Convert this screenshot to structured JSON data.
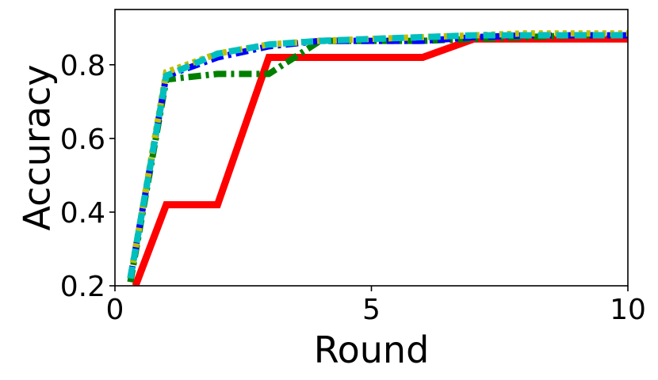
{
  "chart_data": {
    "type": "line",
    "title": "",
    "xlabel": "Round",
    "ylabel": "Accuracy",
    "xlim": [
      0,
      10
    ],
    "ylim": [
      0.2,
      0.95
    ],
    "xticks": [
      0,
      5,
      10
    ],
    "xtick_labels": [
      "0",
      "5",
      "10"
    ],
    "yticks": [
      0.2,
      0.4,
      0.6,
      0.8
    ],
    "ytick_labels": [
      "0.2",
      "0.4",
      "0.6",
      "0.8"
    ],
    "grid": false,
    "legend": "none",
    "series": [
      {
        "color": "#ff0000",
        "style": "solid",
        "x": [
          0.4,
          1,
          2,
          3,
          4,
          5,
          6,
          7,
          8,
          9,
          10
        ],
        "y": [
          0.2,
          0.42,
          0.42,
          0.82,
          0.82,
          0.82,
          0.82,
          0.87,
          0.87,
          0.87,
          0.87
        ]
      },
      {
        "color": "#008000",
        "style": "dashdot",
        "x": [
          0.3,
          1,
          2,
          3,
          4,
          5,
          6,
          7,
          8,
          9,
          10
        ],
        "y": [
          0.21,
          0.76,
          0.775,
          0.775,
          0.865,
          0.865,
          0.865,
          0.87,
          0.875,
          0.88,
          0.88
        ]
      },
      {
        "color": "#0000ff",
        "style": "dashdot",
        "x": [
          0.3,
          1,
          2,
          3,
          4,
          5,
          6,
          7,
          8,
          9,
          10
        ],
        "y": [
          0.22,
          0.77,
          0.82,
          0.85,
          0.865,
          0.865,
          0.865,
          0.875,
          0.88,
          0.88,
          0.88
        ]
      },
      {
        "color": "#bfbf00",
        "style": "dotted",
        "x": [
          0.3,
          1,
          2,
          3,
          4,
          5,
          6,
          7,
          8,
          9,
          10
        ],
        "y": [
          0.22,
          0.78,
          0.83,
          0.855,
          0.865,
          0.87,
          0.875,
          0.88,
          0.885,
          0.885,
          0.885
        ]
      },
      {
        "color": "#00bfbf",
        "style": "dashed",
        "x": [
          0.3,
          1,
          2,
          3,
          4,
          5,
          6,
          7,
          8,
          9,
          10
        ],
        "y": [
          0.22,
          0.77,
          0.83,
          0.855,
          0.865,
          0.87,
          0.875,
          0.88,
          0.88,
          0.88,
          0.88
        ]
      }
    ]
  }
}
